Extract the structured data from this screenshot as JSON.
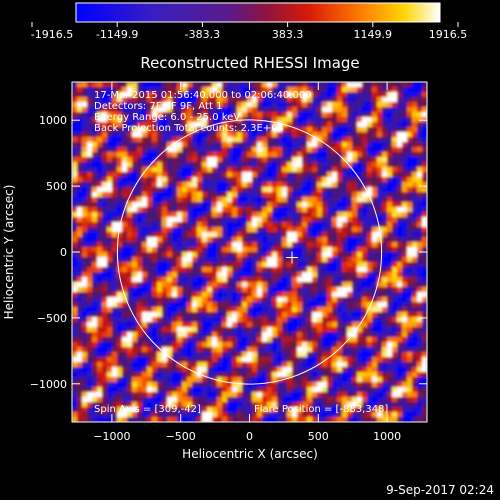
{
  "colorbar": {
    "ticks": [
      "-1916.5",
      "-1149.9",
      "-383.3",
      "383.3",
      "1149.9",
      "1916.5"
    ],
    "range": [
      -1916.5,
      1916.5
    ],
    "colormap": "blue-purple-red-yellow-white"
  },
  "overlay": {
    "line1": "17-Mar-2015 01:56:40.000 to 02:06:40.000",
    "line2": "Detectors: 7F 8F 9F, Att 1",
    "line3": "Energy Range: 6.0 - 25.0 keV",
    "line4": "Back Projection   Total counts: 2.3E+04",
    "spin_axis": "Spin Axis = [309,-42]",
    "flare_position": "Flare Position = [-883,348]"
  },
  "footer": {
    "timestamp": "9-Sep-2017 02:24"
  },
  "chart_data": {
    "type": "heatmap",
    "title": "Reconstructed RHESSI Image",
    "xlabel": "Heliocentric X (arcsec)",
    "ylabel": "Heliocentric Y (arcsec)",
    "xlim": [
      -1290,
      1290
    ],
    "ylim": [
      -1290,
      1290
    ],
    "x_ticks": [
      -1000,
      -500,
      0,
      500,
      1000
    ],
    "y_ticks": [
      -1000,
      -500,
      0,
      500,
      1000
    ],
    "x_tick_labels": [
      "−1000",
      "−500",
      "0",
      "500",
      "1000"
    ],
    "y_tick_labels": [
      "−1000",
      "−500",
      "0",
      "500",
      "1000"
    ],
    "solar_limb_radius": 960,
    "marker": [
      309,
      -42
    ],
    "grid": false
  }
}
